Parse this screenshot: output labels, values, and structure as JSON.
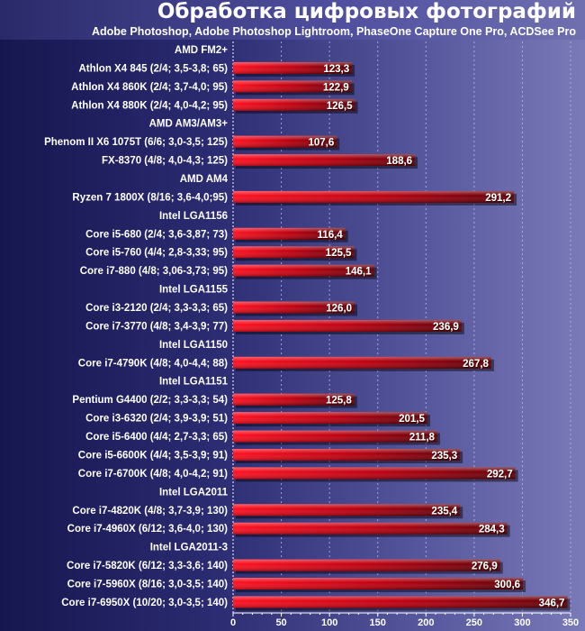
{
  "chart_data": {
    "type": "bar",
    "orientation": "horizontal",
    "title": "Обработка цифровых фотографий",
    "subtitle": "Adobe Photoshop, Adobe Photoshop Lightroom, PhaseOne Capture One Pro, ACDSee Pro",
    "xlabel": "",
    "ylabel": "",
    "xlim": [
      0,
      350
    ],
    "x_ticks": [
      "0",
      "50",
      "100",
      "150",
      "200",
      "250",
      "300",
      "350"
    ],
    "grid": "vertical dashed",
    "bar_color": "#e00010",
    "rows": [
      {
        "label": "AMD FM2+",
        "group": true
      },
      {
        "label": "Athlon X4 845 (2/4; 3,5-3,8; 65)",
        "value": 123.3,
        "value_label": "123,3"
      },
      {
        "label": "Athlon X4 860K (2/4; 3,7-4,0; 95)",
        "value": 122.9,
        "value_label": "122,9"
      },
      {
        "label": "Athlon X4 880K (2/4; 4,0-4,2; 95)",
        "value": 126.5,
        "value_label": "126,5"
      },
      {
        "label": "AMD AM3/AM3+",
        "group": true
      },
      {
        "label": "Phenom II X6 1075T (6/6; 3,0-3,5; 125)",
        "value": 107.6,
        "value_label": "107,6"
      },
      {
        "label": "FX-8370 (4/8; 4,0-4,3; 125)",
        "value": 188.6,
        "value_label": "188,6"
      },
      {
        "label": "AMD AM4",
        "group": true
      },
      {
        "label": "Ryzen 7 1800X (8/16; 3,6-4,0;95)",
        "value": 291.2,
        "value_label": "291,2"
      },
      {
        "label": "Intel LGA1156",
        "group": true
      },
      {
        "label": "Core i5-680 (2/4; 3,6-3,87; 73)",
        "value": 116.4,
        "value_label": "116,4"
      },
      {
        "label": "Core i5-760 (4/4; 2,8-3,33; 95)",
        "value": 125.5,
        "value_label": "125,5"
      },
      {
        "label": "Core i7-880 (4/8; 3,06-3,73; 95)",
        "value": 146.1,
        "value_label": "146,1"
      },
      {
        "label": "Intel LGA1155",
        "group": true
      },
      {
        "label": "Core i3-2120 (2/4; 3,3-3,3; 65)",
        "value": 126.0,
        "value_label": "126,0"
      },
      {
        "label": "Core i7-3770 (4/8; 3,4-3,9; 77)",
        "value": 236.9,
        "value_label": "236,9"
      },
      {
        "label": "Intel LGA1150",
        "group": true
      },
      {
        "label": "Core i7-4790K (4/8; 4,0-4,4; 88)",
        "value": 267.8,
        "value_label": "267,8"
      },
      {
        "label": "Intel LGA1151",
        "group": true
      },
      {
        "label": "Pentium G4400 (2/2; 3,3-3,3; 54)",
        "value": 125.8,
        "value_label": "125,8"
      },
      {
        "label": "Core i3-6320 (2/4; 3,9-3,9; 51)",
        "value": 201.5,
        "value_label": "201,5"
      },
      {
        "label": "Core i5-6400 (4/4; 2,7-3,3; 65)",
        "value": 211.8,
        "value_label": "211,8"
      },
      {
        "label": "Core i5-6600K (4/4; 3,5-3,9; 91)",
        "value": 235.3,
        "value_label": "235,3"
      },
      {
        "label": "Core i7-6700K (4/8; 4,0-4,2; 91)",
        "value": 292.7,
        "value_label": "292,7"
      },
      {
        "label": "Intel LGA2011",
        "group": true
      },
      {
        "label": "Core i7-4820K (4/8; 3,7-3,9; 130)",
        "value": 235.4,
        "value_label": "235,4"
      },
      {
        "label": "Core i7-4960X (6/12; 3,6-4,0; 130)",
        "value": 284.3,
        "value_label": "284,3"
      },
      {
        "label": "Intel LGA2011-3",
        "group": true
      },
      {
        "label": "Core i7-5820K (6/12; 3,3-3,6; 140)",
        "value": 276.9,
        "value_label": "276,9"
      },
      {
        "label": "Core i7-5960X (8/16; 3,0-3,5; 140)",
        "value": 300.6,
        "value_label": "300,6"
      },
      {
        "label": "Core i7-6950X (10/20; 3,0-3,5; 140)",
        "value": 346.7,
        "value_label": "346,7"
      }
    ]
  }
}
